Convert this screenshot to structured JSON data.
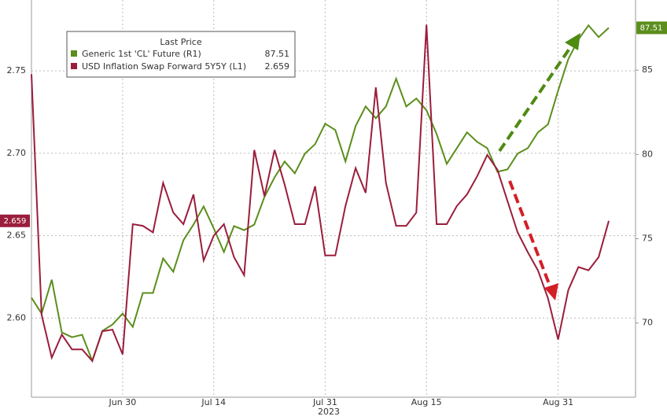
{
  "chart_data": {
    "type": "line",
    "x_label": "2023",
    "categories": [
      null,
      null,
      null,
      null,
      null,
      null,
      null,
      null,
      null,
      "Jun 30",
      null,
      null,
      null,
      null,
      null,
      null,
      null,
      null,
      "Jul 14",
      null,
      null,
      null,
      null,
      null,
      null,
      null,
      null,
      null,
      null,
      "Jul 31",
      null,
      null,
      null,
      null,
      null,
      null,
      null,
      null,
      null,
      "Aug 15",
      null,
      null,
      null,
      null,
      null,
      null,
      null,
      null,
      null,
      null,
      null,
      null,
      "Aug 31",
      null,
      null,
      null,
      null,
      null
    ],
    "legend_title": "Last Price",
    "series": [
      {
        "name": "Generic 1st 'CL' Future  (R1)",
        "color": "#5b8e1c",
        "axis": "y2",
        "values": [
          71.5,
          70.56,
          72.57,
          69.44,
          69.16,
          69.3,
          67.76,
          69.53,
          69.91,
          70.56,
          69.77,
          71.78,
          71.78,
          73.83,
          73.04,
          74.91,
          75.84,
          76.92,
          75.61,
          74.21,
          75.75,
          75.51,
          75.84,
          77.48,
          78.64,
          79.58,
          78.88,
          80.05,
          80.61,
          81.82,
          81.45,
          79.58,
          81.68,
          82.85,
          82.15,
          82.85,
          84.49,
          82.85,
          83.32,
          82.62,
          81.21,
          79.44,
          80.37,
          81.31,
          80.75,
          80.37,
          78.97,
          79.11,
          80.05,
          80.37,
          81.31,
          81.78,
          83.79,
          85.65,
          86.82,
          87.66,
          86.96,
          87.51
        ]
      },
      {
        "name": "USD Inflation Swap Forward 5Y5Y  (L1)",
        "color": "#9b1d3c",
        "axis": "y",
        "values": [
          2.748,
          2.602,
          2.576,
          2.59,
          2.581,
          2.581,
          2.574,
          2.592,
          2.593,
          2.578,
          2.657,
          2.656,
          2.652,
          2.682,
          2.664,
          2.657,
          2.675,
          2.635,
          2.65,
          2.657,
          2.637,
          2.626,
          2.702,
          2.674,
          2.702,
          2.681,
          2.657,
          2.657,
          2.68,
          2.638,
          2.638,
          2.668,
          2.691,
          2.676,
          2.74,
          2.682,
          2.656,
          2.656,
          2.664,
          2.778,
          2.657,
          2.657,
          2.668,
          2.675,
          2.686,
          2.699,
          2.69,
          2.671,
          2.652,
          2.64,
          2.629,
          2.612,
          2.587,
          2.617,
          2.631,
          2.629,
          2.637,
          2.659
        ]
      }
    ],
    "ylim": [
      2.552,
      2.793
    ],
    "yticks": [
      {
        "value": 2.6,
        "label": "2.60"
      },
      {
        "value": 2.65,
        "label": "2.65"
      },
      {
        "value": 2.7,
        "label": "2.70"
      },
      {
        "value": 2.75,
        "label": "2.75"
      }
    ],
    "y2lim": [
      65.6,
      89.16
    ],
    "y2ticks": [
      70,
      75,
      80,
      85
    ],
    "grid": true
  }
}
